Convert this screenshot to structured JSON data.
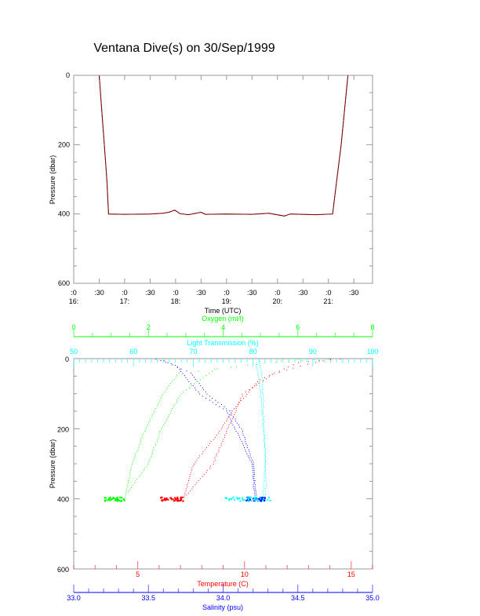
{
  "title": "Ventana Dive(s) on 30/Sep/1999",
  "colors": {
    "temperature": "#ff0000",
    "salinity": "#0000ff",
    "oxygen": "#00ff00",
    "light": "#00ffff",
    "depth_line": "#000000",
    "axis": "#999999"
  },
  "chart_data": [
    {
      "type": "line",
      "xlabel": "Time (UTC)",
      "ylabel": "Pressure (dbar)",
      "xlim": [
        "16:00",
        "21:52"
      ],
      "ylim": [
        600,
        0
      ],
      "y_ticks": [
        "0",
        "200",
        "400",
        "600"
      ],
      "x_ticks": [
        {
          "t": "16:00",
          "minute": ":0",
          "hour": "16:"
        },
        {
          "t": "16:30",
          "minute": ":30",
          "hour": ""
        },
        {
          "t": "17:00",
          "minute": ":0",
          "hour": "17:"
        },
        {
          "t": "17:30",
          "minute": ":30",
          "hour": ""
        },
        {
          "t": "18:00",
          "minute": ":0",
          "hour": "18:"
        },
        {
          "t": "18:30",
          "minute": ":30",
          "hour": ""
        },
        {
          "t": "19:00",
          "minute": ":0",
          "hour": "19:"
        },
        {
          "t": "19:30",
          "minute": ":30",
          "hour": ""
        },
        {
          "t": "20:00",
          "minute": ":0",
          "hour": "20:"
        },
        {
          "t": "20:30",
          "minute": ":30",
          "hour": ""
        },
        {
          "t": "21:00",
          "minute": ":0",
          "hour": "21:"
        },
        {
          "t": "21:30",
          "minute": ":30",
          "hour": ""
        }
      ],
      "series": [
        {
          "points": [
            [
              "16:30",
              0
            ],
            [
              "16:33",
              100
            ],
            [
              "16:36",
              200
            ],
            [
              "16:39",
              300
            ],
            [
              "16:41",
              400
            ],
            [
              "17:00",
              401
            ],
            [
              "17:30",
              400
            ],
            [
              "17:45",
              398
            ],
            [
              "17:52",
              395
            ],
            [
              "17:59",
              389
            ],
            [
              "18:05",
              399
            ],
            [
              "18:15",
              402
            ],
            [
              "18:30",
              395
            ],
            [
              "18:35",
              401
            ],
            [
              "19:00",
              400
            ],
            [
              "19:30",
              401
            ],
            [
              "19:50",
              398
            ],
            [
              "20:08",
              406
            ],
            [
              "20:15",
              400
            ],
            [
              "20:45",
              402
            ],
            [
              "21:05",
              400
            ],
            [
              "21:10",
              300
            ],
            [
              "21:15",
              200
            ],
            [
              "21:19",
              100
            ],
            [
              "21:23",
              0
            ]
          ]
        }
      ]
    },
    {
      "type": "scatter",
      "ylabel": "Pressure (dbar)",
      "ylim": [
        600,
        0
      ],
      "y_ticks": [
        "0",
        "200",
        "400",
        "600"
      ],
      "axes": {
        "oxygen": {
          "label": "Oxygen (ml/l)",
          "lim": [
            0,
            8
          ],
          "ticks": [
            "0",
            "2",
            "4",
            "6",
            "8"
          ]
        },
        "light": {
          "label": "Light Transmission (%)",
          "lim": [
            50,
            100
          ],
          "ticks": [
            "50",
            "60",
            "70",
            "80",
            "90",
            "100"
          ]
        },
        "temperature": {
          "label": "Temperature (C)",
          "lim": [
            2,
            16
          ],
          "ticks": [
            "5",
            "10",
            "15"
          ]
        },
        "salinity": {
          "label": "Salinity (psu)",
          "lim": [
            33.0,
            35.0
          ],
          "ticks": [
            "33.0",
            "33.5",
            "34.0",
            "34.5",
            "35.0"
          ]
        }
      },
      "series": [
        {
          "axis": "temperature",
          "casts": [
            [
              [
                14.5,
                0
              ],
              [
                12.5,
                10
              ],
              [
                10.7,
                59
              ],
              [
                9.4,
                148
              ],
              [
                8.9,
                200
              ],
              [
                7.6,
                300
              ],
              [
                7.1,
                400
              ]
            ],
            [
              [
                14.0,
                0
              ],
              [
                12.6,
                20
              ],
              [
                11.3,
                44
              ],
              [
                9.9,
                100
              ],
              [
                9.2,
                200
              ],
              [
                8.5,
                300
              ],
              [
                7.1,
                400
              ]
            ]
          ],
          "bottom_range": [
            6.0,
            7.1
          ]
        },
        {
          "axis": "salinity",
          "casts": [
            [
              [
                33.55,
                0
              ],
              [
                33.68,
                18
              ],
              [
                33.84,
                100
              ],
              [
                34.02,
                148
              ],
              [
                34.08,
                200
              ],
              [
                34.19,
                300
              ],
              [
                34.21,
                400
              ]
            ],
            [
              [
                33.6,
                5
              ],
              [
                33.78,
                40
              ],
              [
                33.89,
                100
              ],
              [
                34.04,
                148
              ],
              [
                34.12,
                200
              ],
              [
                34.2,
                300
              ],
              [
                34.22,
                400
              ]
            ]
          ],
          "bottom_range": [
            34.15,
            34.28
          ]
        },
        {
          "axis": "oxygen",
          "casts": [
            [
              [
                6.8,
                0
              ],
              [
                5.4,
                10
              ],
              [
                2.8,
                40
              ],
              [
                2.37,
                100
              ],
              [
                1.91,
                200
              ],
              [
                1.55,
                300
              ],
              [
                1.35,
                400
              ]
            ],
            [
              [
                6.0,
                0
              ],
              [
                3.76,
                29
              ],
              [
                2.86,
                100
              ],
              [
                2.33,
                200
              ],
              [
                1.98,
                300
              ],
              [
                1.4,
                385
              ]
            ]
          ],
          "bottom_range": [
            0.8,
            1.35
          ]
        },
        {
          "axis": "light",
          "casts": [
            [
              [
                81.0,
                0
              ],
              [
                81.5,
                60
              ],
              [
                81.8,
                200
              ],
              [
                82.0,
                300
              ],
              [
                81.6,
                400
              ]
            ],
            [
              [
                80.5,
                10
              ],
              [
                81.2,
                100
              ],
              [
                81.9,
                250
              ],
              [
                82.1,
                350
              ],
              [
                82.0,
                400
              ]
            ]
          ],
          "bottom_range": [
            75,
            83
          ]
        }
      ]
    }
  ]
}
